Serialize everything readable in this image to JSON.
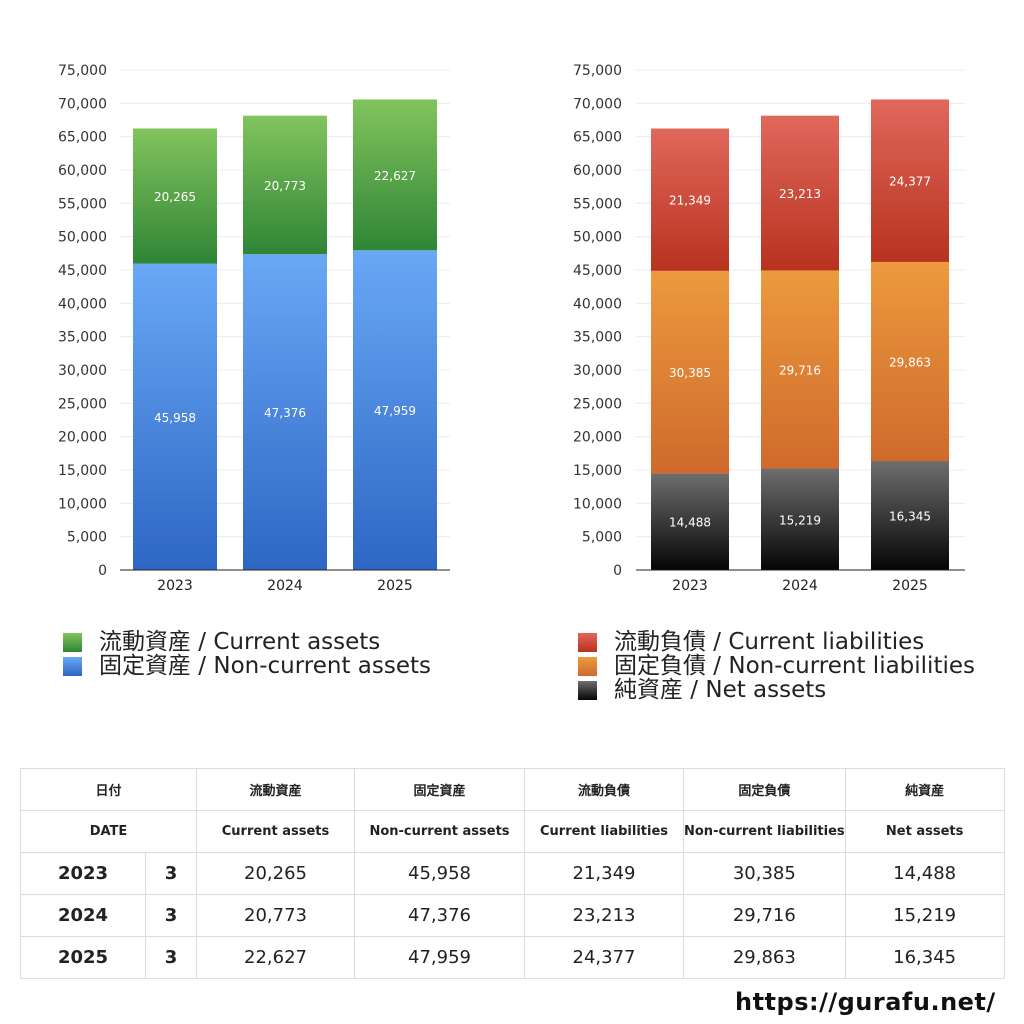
{
  "chart_data": [
    {
      "type": "bar",
      "stacked": true,
      "categories": [
        "2023",
        "2024",
        "2025"
      ],
      "ylim": [
        0,
        75000
      ],
      "yticks": [
        "0",
        "5,000",
        "10,000",
        "15,000",
        "20,000",
        "25,000",
        "30,000",
        "35,000",
        "40,000",
        "45,000",
        "50,000",
        "55,000",
        "60,000",
        "65,000",
        "70,000",
        "75,000"
      ],
      "grid": true,
      "series": [
        {
          "name": "固定資産 / Non-current assets",
          "values": [
            45958,
            47376,
            47959
          ],
          "labels": [
            "45,958",
            "47,376",
            "47,959"
          ],
          "color_top": "#69a8f5",
          "color_bottom": "#2e66c4"
        },
        {
          "name": "流動資産 / Current assets",
          "values": [
            20265,
            20773,
            22627
          ],
          "labels": [
            "20,265",
            "20,773",
            "22,627"
          ],
          "color_top": "#82c45e",
          "color_bottom": "#2f8535"
        }
      ]
    },
    {
      "type": "bar",
      "stacked": true,
      "categories": [
        "2023",
        "2024",
        "2025"
      ],
      "ylim": [
        0,
        75000
      ],
      "yticks": [
        "0",
        "5,000",
        "10,000",
        "15,000",
        "20,000",
        "25,000",
        "30,000",
        "35,000",
        "40,000",
        "45,000",
        "50,000",
        "55,000",
        "60,000",
        "65,000",
        "70,000",
        "75,000"
      ],
      "grid": true,
      "series": [
        {
          "name": "純資産 / Net assets",
          "values": [
            14488,
            15219,
            16345
          ],
          "labels": [
            "14,488",
            "15,219",
            "16,345"
          ],
          "color_top": "#6e6e6e",
          "color_bottom": "#050505"
        },
        {
          "name": "固定負債 / Non-current liabilities",
          "values": [
            30385,
            29716,
            29863
          ],
          "labels": [
            "30,385",
            "29,716",
            "29,863"
          ],
          "color_top": "#ec9a3e",
          "color_bottom": "#cf6a2c"
        },
        {
          "name": "流動負債 / Current liabilities",
          "values": [
            21349,
            23213,
            24377
          ],
          "labels": [
            "21,349",
            "23,213",
            "24,377"
          ],
          "color_top": "#e0685c",
          "color_bottom": "#b8321e"
        }
      ]
    }
  ],
  "legend_left": [
    {
      "label": "流動資産 / Current assets",
      "color": "#4ea63f"
    },
    {
      "label": "固定資産 / Non-current assets",
      "color": "#3f7fdc"
    }
  ],
  "legend_right": [
    {
      "label": "流動負債 / Current liabilities",
      "color": "#d64535"
    },
    {
      "label": "固定負債 / Non-current liabilities",
      "color": "#e3853a"
    },
    {
      "label": "純資産 / Net assets",
      "color": "#2a2a2a"
    }
  ],
  "table": {
    "header_jp": [
      "日付",
      "流動資産",
      "固定資産",
      "流動負債",
      "固定負債",
      "純資産"
    ],
    "header_en": [
      "DATE",
      "Current assets",
      "Non-current assets",
      "Current liabilities",
      "Non-current liabilities",
      "Net assets"
    ],
    "rows": [
      {
        "year": "2023",
        "month": "3",
        "values": [
          "20,265",
          "45,958",
          "21,349",
          "30,385",
          "14,488"
        ]
      },
      {
        "year": "2024",
        "month": "3",
        "values": [
          "20,773",
          "47,376",
          "23,213",
          "29,716",
          "15,219"
        ]
      },
      {
        "year": "2025",
        "month": "3",
        "values": [
          "22,627",
          "47,959",
          "24,377",
          "29,863",
          "16,345"
        ]
      }
    ]
  },
  "footer": {
    "site": "https://gurafu.net/"
  }
}
